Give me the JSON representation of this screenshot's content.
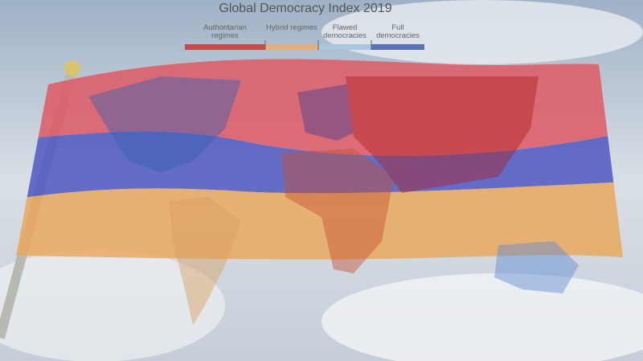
{
  "title": "Global Democracy Index 2019",
  "legend": {
    "items": [
      {
        "label": "Authoritarian regimes"
      },
      {
        "label": "Hybrid regimes"
      },
      {
        "label": "Flawed democracies"
      },
      {
        "label": "Full democracies"
      }
    ]
  }
}
